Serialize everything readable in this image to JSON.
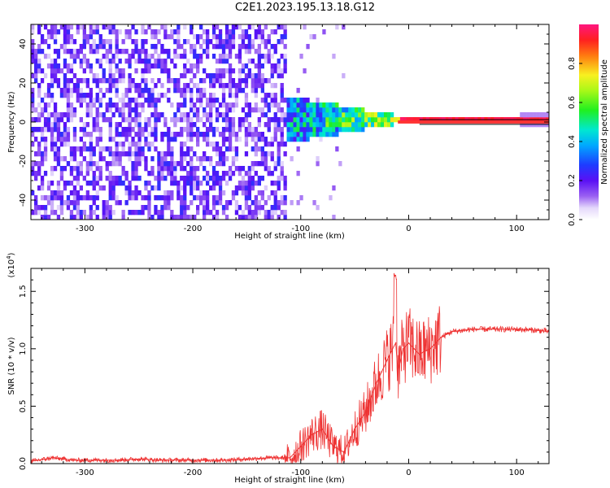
{
  "title": "C2E1.2023.195.13.18.G12",
  "colors": {
    "snr_line": "#ee3333",
    "ridge": "#ff3333",
    "colormap": [
      "#ffffff",
      "#c9b6f5",
      "#7b2cf0",
      "#4a14f5",
      "#2060ff",
      "#00d8e8",
      "#38f238",
      "#e8ff20",
      "#ff3030",
      "#ff1480"
    ]
  },
  "chart_data": [
    {
      "type": "heatmap",
      "title": "C2E1.2023.195.13.18.G12",
      "xlabel": "Height of straight line (km)",
      "ylabel": "Frequency (Hz)",
      "xlim": [
        -350,
        130
      ],
      "ylim": [
        -50,
        50
      ],
      "xticks": [
        -300,
        -200,
        -100,
        0,
        100
      ],
      "yticks": [
        -40,
        -20,
        0,
        20,
        40
      ],
      "colorbar": {
        "label": "Normalized spectral amplitude",
        "range": [
          0,
          1
        ],
        "ticks": [
          "0.0",
          "0.2",
          "0.4",
          "0.6",
          "0.8"
        ],
        "orientation": "vertical"
      },
      "description_regions": [
        {
          "x_range": [
            -350,
            -115
          ],
          "freq_range": [
            -50,
            50
          ],
          "level": "scattered 0.1-0.3"
        },
        {
          "x_range": [
            -115,
            -10
          ],
          "freq_range": [
            -12,
            12
          ],
          "level": "0.2-0.6, ridge near 0 Hz"
        },
        {
          "x_range": [
            -10,
            130
          ],
          "freq_range": [
            -1,
            1
          ],
          "level": "0.9-1.0, narrow ridge at 0 Hz"
        }
      ]
    },
    {
      "type": "line",
      "xlabel": "Height of straight line (km)",
      "ylabel": "SNR (10 * v/v)",
      "scale_note": "(x10^4)",
      "xlim": [
        -350,
        130
      ],
      "ylim": [
        0,
        1.7
      ],
      "xticks": [
        -300,
        -200,
        -100,
        0,
        100
      ],
      "yticks": [
        "0.0",
        "0.5",
        "1.0",
        "1.5"
      ],
      "series": [
        {
          "x": [
            -350,
            -330,
            -310,
            -290,
            -270,
            -250,
            -230,
            -210,
            -190,
            -170,
            -150,
            -130,
            -110,
            -100,
            -90,
            -80,
            -70,
            -60,
            -50,
            -40,
            -30,
            -25,
            -20,
            -15,
            -12,
            -10,
            -5,
            0,
            5,
            10,
            15,
            20,
            30,
            40,
            50,
            60,
            80,
            100,
            120,
            130
          ],
          "y": [
            0.02,
            0.05,
            0.03,
            0.03,
            0.03,
            0.04,
            0.03,
            0.03,
            0.03,
            0.03,
            0.04,
            0.05,
            0.05,
            0.15,
            0.25,
            0.3,
            0.15,
            0.1,
            0.3,
            0.45,
            0.7,
            0.8,
            0.9,
            1.0,
            1.05,
            0.8,
            1.0,
            1.05,
            1.0,
            0.95,
            0.98,
            1.0,
            1.1,
            1.15,
            1.16,
            1.17,
            1.17,
            1.17,
            1.16,
            1.15
          ]
        }
      ]
    }
  ]
}
